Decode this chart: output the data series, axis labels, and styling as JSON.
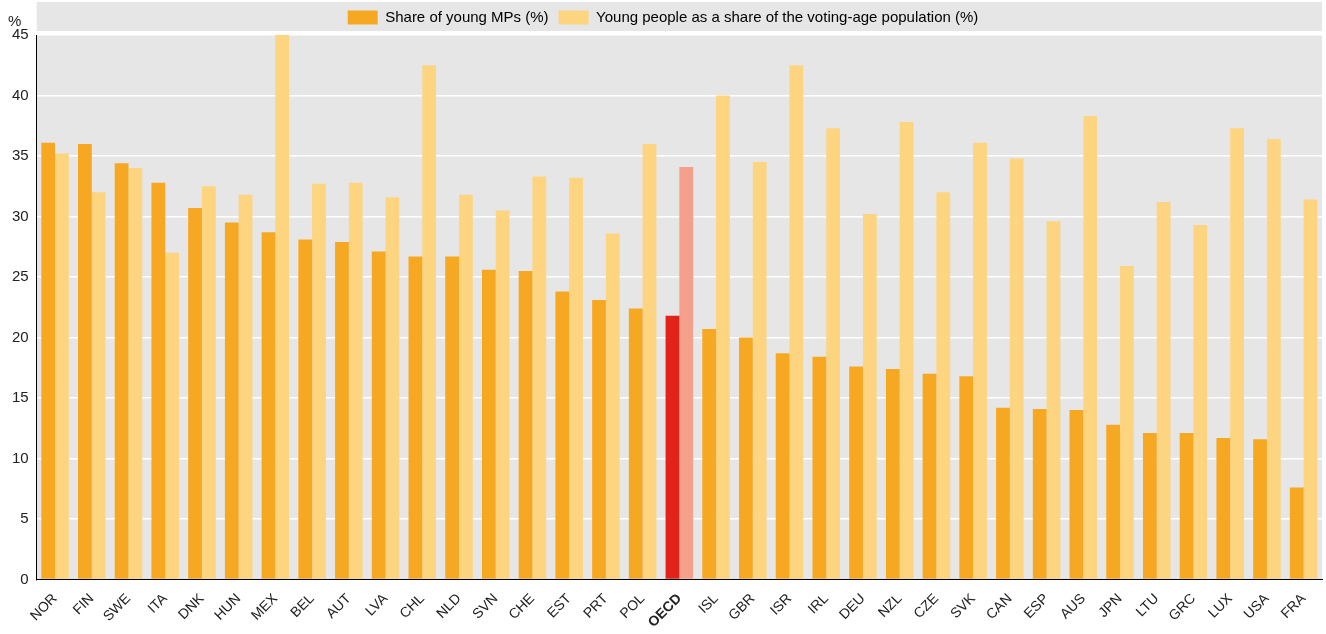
{
  "chart_data": {
    "type": "bar",
    "ylabel": "%",
    "legend": "top",
    "grid": "y",
    "categories": [
      "NOR",
      "FIN",
      "SWE",
      "ITA",
      "DNK",
      "HUN",
      "MEX",
      "BEL",
      "AUT",
      "LVA",
      "CHL",
      "NLD",
      "SVN",
      "CHE",
      "EST",
      "PRT",
      "POL",
      "OECD",
      "ISL",
      "GBR",
      "ISR",
      "IRL",
      "DEU",
      "NZL",
      "CZE",
      "SVK",
      "CAN",
      "ESP",
      "AUS",
      "JPN",
      "LTU",
      "GRC",
      "LUX",
      "USA",
      "FRA"
    ],
    "ylim": [
      0,
      45
    ],
    "yticks": [
      0,
      5,
      10,
      15,
      20,
      25,
      30,
      35,
      40,
      45
    ],
    "series": [
      {
        "name": "Share of young MPs (%)",
        "color": "#f7a823",
        "colors": [
          "#f7a823",
          "#f7a823",
          "#f7a823",
          "#f7a823",
          "#f7a823",
          "#f7a823",
          "#f7a823",
          "#f7a823",
          "#f7a823",
          "#f7a823",
          "#f7a823",
          "#f7a823",
          "#f7a823",
          "#f7a823",
          "#f7a823",
          "#f7a823",
          "#f7a823",
          "#e2231a",
          "#f7a823",
          "#f7a823",
          "#f7a823",
          "#f7a823",
          "#f7a823",
          "#f7a823",
          "#f7a823",
          "#f7a823",
          "#f7a823",
          "#f7a823",
          "#f7a823",
          "#f7a823",
          "#f7a823",
          "#f7a823",
          "#f7a823",
          "#f7a823",
          "#f7a823"
        ],
        "values": [
          36.1,
          36.0,
          34.4,
          32.8,
          30.7,
          29.5,
          28.7,
          28.1,
          27.9,
          27.1,
          26.7,
          26.7,
          25.6,
          25.5,
          23.8,
          23.1,
          22.4,
          21.8,
          20.7,
          20.0,
          18.7,
          18.4,
          17.6,
          17.4,
          17.0,
          16.8,
          14.2,
          14.1,
          14.0,
          12.8,
          12.1,
          12.1,
          11.7,
          11.6,
          7.6
        ]
      },
      {
        "name": "Young people as a share of the voting-age population (%)",
        "color": "#fdd47f",
        "colors": [
          "#fdd47f",
          "#fdd47f",
          "#fdd47f",
          "#fdd47f",
          "#fdd47f",
          "#fdd47f",
          "#fdd47f",
          "#fdd47f",
          "#fdd47f",
          "#fdd47f",
          "#fdd47f",
          "#fdd47f",
          "#fdd47f",
          "#fdd47f",
          "#fdd47f",
          "#fdd47f",
          "#fdd47f",
          "#f4a08a",
          "#fdd47f",
          "#fdd47f",
          "#fdd47f",
          "#fdd47f",
          "#fdd47f",
          "#fdd47f",
          "#fdd47f",
          "#fdd47f",
          "#fdd47f",
          "#fdd47f",
          "#fdd47f",
          "#fdd47f",
          "#fdd47f",
          "#fdd47f",
          "#fdd47f",
          "#fdd47f",
          "#fdd47f"
        ],
        "values": [
          35.2,
          32.0,
          34.0,
          27.0,
          32.5,
          31.8,
          45.0,
          32.7,
          32.8,
          31.6,
          42.5,
          31.8,
          30.5,
          33.3,
          33.2,
          28.6,
          36.0,
          34.1,
          40.0,
          34.5,
          42.5,
          37.3,
          30.2,
          37.8,
          32.0,
          36.1,
          34.8,
          29.6,
          38.3,
          25.9,
          31.2,
          29.3,
          37.3,
          36.4,
          31.4
        ]
      }
    ]
  }
}
